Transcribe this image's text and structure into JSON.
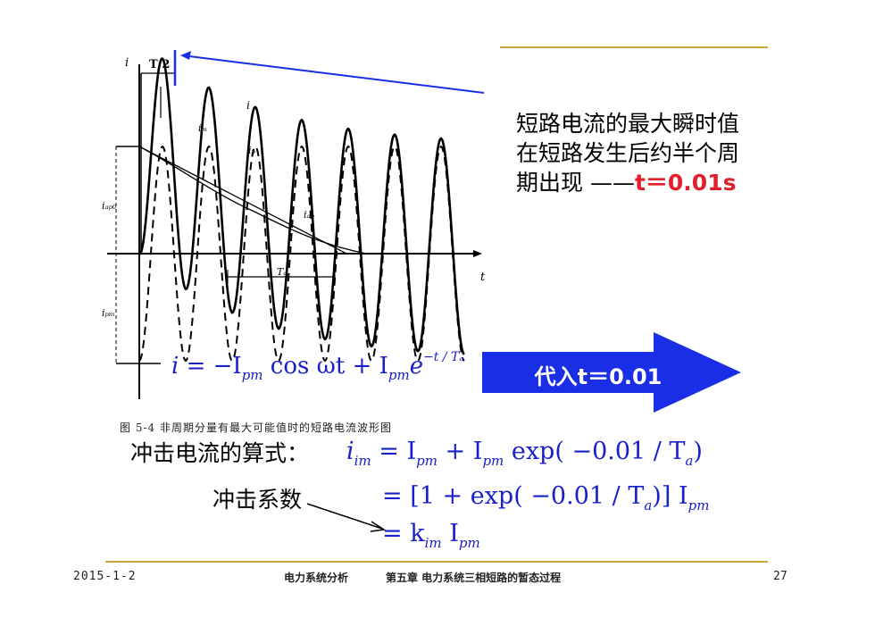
{
  "description": {
    "line1": "短路电流的最大瞬时值",
    "line2": "在短路发生后约半个周",
    "line3_prefix": "期出现 ——",
    "line3_highlight": "t＝0.01s"
  },
  "arrow_label": "代入t＝0.01",
  "figure_caption": "图 5-4   非周期分量有最大可能值时的短路电流波形图",
  "graph_labels": {
    "y_axis": "i",
    "x_axis": "t",
    "half_period": "T/2",
    "i_label": "i",
    "im_label": "iₘ",
    "ip_label": "iₚ",
    "iap_label": "iₐₚ",
    "ta_label": "Tₐ",
    "iapo_label": "iₐₚ₀",
    "ipm_label": "iₚₘ"
  },
  "wave_formula": {
    "lhs": "i",
    "body": " = −I",
    "sub1": "pm",
    "cos": " cos ωt + I",
    "sub2": "pm",
    "e": "e",
    "exp": "−t / Tₐ"
  },
  "impact_label": "冲击电流的算式：",
  "coef_label": "冲击系数",
  "formula1": {
    "lhs": "i",
    "lhs_sub": "im",
    "t1": " = I",
    "s1": "pm",
    "t2": " + I",
    "s2": "pm",
    "t3": " exp( −0.01 / T",
    "s3": "a",
    "t4": ")"
  },
  "formula2": {
    "t1": "= [1 + exp( −0.01 / T",
    "s1": "a",
    "t2": ")] I",
    "s2": "pm"
  },
  "formula3": {
    "t1": "= k",
    "s1": "im",
    "t2": " I",
    "s2": "pm"
  },
  "footer": {
    "date": "2015-1-2",
    "course": "电力系统分析",
    "chapter": "第五章 电力系统三相短路的暂态过程",
    "page": "27"
  },
  "colors": {
    "accent_line": "#c8a63a",
    "formula": "#1a20c8",
    "highlight": "#e0202a",
    "arrow": "#1a2ee6"
  }
}
